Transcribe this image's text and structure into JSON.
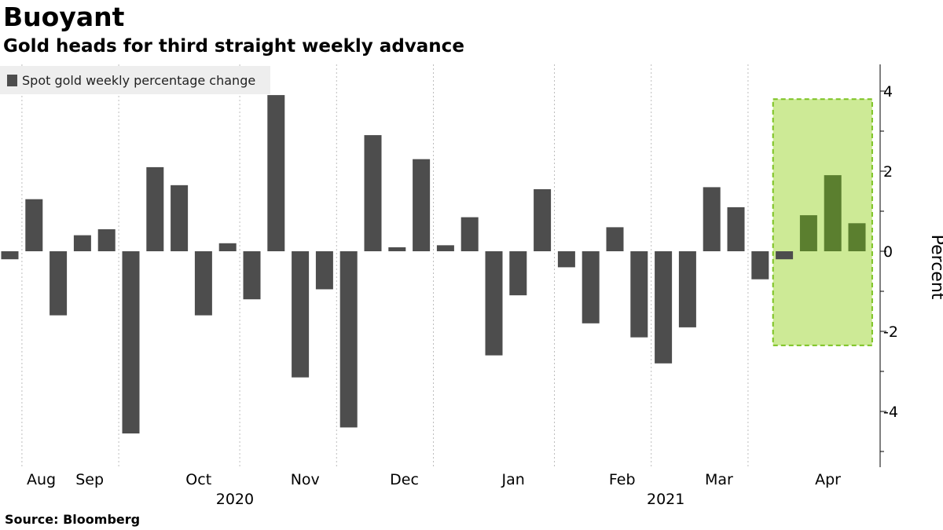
{
  "header": {
    "title": "Buoyant",
    "subtitle": "Gold heads for third straight weekly advance"
  },
  "footer": {
    "source": "Source: Bloomberg"
  },
  "colors": {
    "bar": "#4d4d4d",
    "bar_highlight": "#5b7f2f",
    "highlight_fill": "#cdea96",
    "highlight_border": "#7cc322",
    "grid": "#bdbdbd",
    "legend_bg": "#eeeeee"
  },
  "chart_data": {
    "type": "bar",
    "title": "Buoyant",
    "subtitle": "Gold heads for third straight weekly advance",
    "legend": [
      "Spot gold weekly percentage change"
    ],
    "legend_position": "top-left",
    "xlabel": "",
    "ylabel": "Percent",
    "ylim": [
      -5.2,
      4.7
    ],
    "yticks": [
      -4,
      -2,
      0,
      2,
      4
    ],
    "y_tick_labels": [
      "-4",
      "-2",
      "0",
      "2",
      "4"
    ],
    "y_axis_side": "right",
    "grid": true,
    "series": [
      {
        "name": "Spot gold weekly percentage change",
        "values": [
          -0.2,
          1.3,
          -1.6,
          0.4,
          0.55,
          -4.55,
          2.1,
          1.65,
          -1.6,
          0.2,
          -1.2,
          3.9,
          -3.15,
          -0.95,
          -4.4,
          2.9,
          0.1,
          2.3,
          0.15,
          0.85,
          -2.6,
          -1.1,
          1.55,
          -0.4,
          -1.8,
          0.6,
          -2.15,
          -2.8,
          -1.9,
          1.6,
          1.1,
          -0.7,
          -0.2,
          0.9,
          1.9,
          0.7
        ]
      }
    ],
    "highlight": {
      "first_index": 32,
      "last_index": 35,
      "y_range": [
        -2.35,
        3.8
      ]
    },
    "month_labels": [
      {
        "label": "Aug",
        "at_bar": 1.3
      },
      {
        "label": "Sep",
        "at_bar": 3.3
      },
      {
        "label": "Oct",
        "at_bar": 7.8
      },
      {
        "label": "Nov",
        "at_bar": 12.2
      },
      {
        "label": "Dec",
        "at_bar": 16.3
      },
      {
        "label": "Jan",
        "at_bar": 20.8
      },
      {
        "label": "Feb",
        "at_bar": 25.3
      },
      {
        "label": "Mar",
        "at_bar": 29.3
      },
      {
        "label": "Apr",
        "at_bar": 33.8
      }
    ],
    "year_labels": [
      {
        "label": "2020",
        "at_bar": 9.3
      },
      {
        "label": "2021",
        "at_bar": 27.1
      }
    ],
    "month_boundaries": [
      1,
      5,
      10,
      14,
      18,
      23,
      27,
      31
    ]
  }
}
